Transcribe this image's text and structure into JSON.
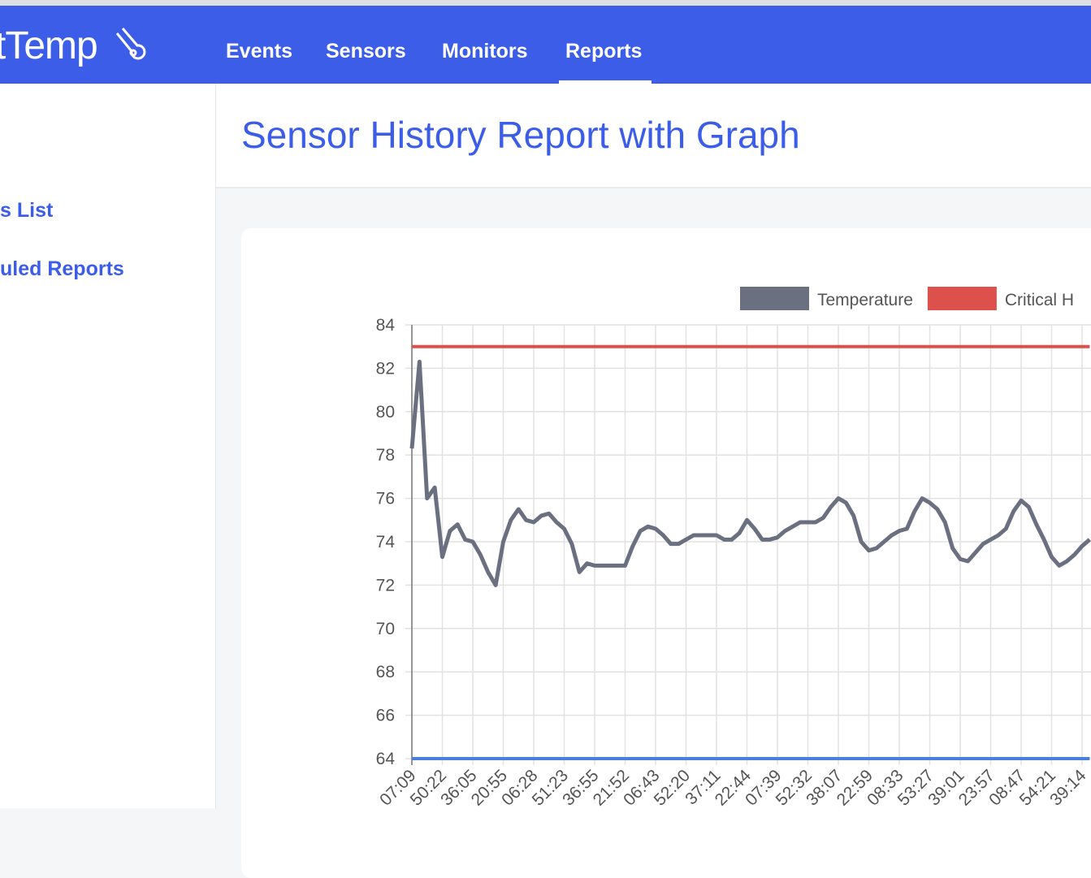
{
  "nav": {
    "logo": "tTemp",
    "items": [
      "Events",
      "Sensors",
      "Monitors",
      "Reports"
    ]
  },
  "sidebar": {
    "items": [
      "s List",
      "uled Reports"
    ]
  },
  "page": {
    "title": "Sensor History Report with Graph"
  },
  "chart_data": {
    "type": "line",
    "categories": [
      "07:09",
      null,
      null,
      null,
      "50:22",
      null,
      null,
      null,
      "36:05",
      null,
      null,
      null,
      "20:55",
      null,
      null,
      null,
      "06:28",
      null,
      null,
      null,
      "51:23",
      null,
      null,
      null,
      "36:55",
      null,
      null,
      null,
      "21:52",
      null,
      null,
      null,
      "06:43",
      null,
      null,
      null,
      "52:20",
      null,
      null,
      null,
      "37:11",
      null,
      null,
      null,
      "22:44",
      null,
      null,
      null,
      "07:39",
      null,
      null,
      null,
      "52:32",
      null,
      null,
      null,
      "38:07",
      null,
      null,
      null,
      "22:59",
      null,
      null,
      null,
      "08:33",
      null,
      null,
      null,
      "53:27",
      null,
      null,
      null,
      "39:01",
      null,
      null,
      null,
      "23:57",
      null,
      null,
      null,
      "08:47",
      null,
      null,
      null,
      "54:21",
      null,
      null,
      null,
      "39:14",
      null
    ],
    "series": [
      {
        "name": "Temperature",
        "color": "#6b7080",
        "values": [
          78.3,
          82.3,
          76,
          76.5,
          73.3,
          74.5,
          74.8,
          74.1,
          74.0,
          73.4,
          72.6,
          72.0,
          74.0,
          75.0,
          75.5,
          75.0,
          74.9,
          75.2,
          75.3,
          74.9,
          74.6,
          73.9,
          72.6,
          73.0,
          72.9,
          72.9,
          72.9,
          72.9,
          72.9,
          73.8,
          74.5,
          74.7,
          74.6,
          74.3,
          73.9,
          73.9,
          74.1,
          74.3,
          74.3,
          74.3,
          74.3,
          74.1,
          74.1,
          74.4,
          75.0,
          74.6,
          74.1,
          74.1,
          74.2,
          74.5,
          74.7,
          74.9,
          74.9,
          74.9,
          75.1,
          75.6,
          76.0,
          75.8,
          75.2,
          74.0,
          73.6,
          73.7,
          74.0,
          74.3,
          74.5,
          74.6,
          75.4,
          76.0,
          75.8,
          75.5,
          74.9,
          73.7,
          73.2,
          73.1,
          73.5,
          73.9,
          74.1,
          74.3,
          74.6,
          75.4,
          75.9,
          75.6,
          74.8,
          74.1,
          73.3,
          72.9,
          73.1,
          73.4,
          73.8,
          74.1
        ]
      },
      {
        "name": "Critical H",
        "color": "#dc514b",
        "values": [
          83,
          83,
          83,
          83,
          83,
          83,
          83,
          83,
          83,
          83,
          83,
          83,
          83,
          83,
          83,
          83,
          83,
          83,
          83,
          83,
          83,
          83,
          83,
          83,
          83,
          83,
          83,
          83,
          83,
          83,
          83,
          83,
          83,
          83,
          83,
          83,
          83,
          83,
          83,
          83,
          83,
          83,
          83,
          83,
          83,
          83,
          83,
          83,
          83,
          83,
          83,
          83,
          83,
          83,
          83,
          83,
          83,
          83,
          83,
          83,
          83,
          83,
          83,
          83,
          83,
          83,
          83,
          83,
          83,
          83,
          83,
          83,
          83,
          83,
          83,
          83,
          83,
          83,
          83,
          83,
          83,
          83,
          83,
          83,
          83,
          83,
          83,
          83,
          83,
          83
        ]
      },
      {
        "color": "#4a7fe0",
        "values": [
          64,
          64,
          64,
          64,
          64,
          64,
          64,
          64,
          64,
          64,
          64,
          64,
          64,
          64,
          64,
          64,
          64,
          64,
          64,
          64,
          64,
          64,
          64,
          64,
          64,
          64,
          64,
          64,
          64,
          64,
          64,
          64,
          64,
          64,
          64,
          64,
          64,
          64,
          64,
          64,
          64,
          64,
          64,
          64,
          64,
          64,
          64,
          64,
          64,
          64,
          64,
          64,
          64,
          64,
          64,
          64,
          64,
          64,
          64,
          64,
          64,
          64,
          64,
          64,
          64,
          64,
          64,
          64,
          64,
          64,
          64,
          64,
          64,
          64,
          64,
          64,
          64,
          64,
          64,
          64,
          64,
          64,
          64,
          64,
          64,
          64,
          64,
          64,
          64,
          64
        ]
      }
    ],
    "ylim": [
      64,
      84
    ],
    "yticks": [
      64,
      66,
      68,
      70,
      72,
      74,
      76,
      78,
      80,
      82,
      84
    ],
    "grid": true
  }
}
